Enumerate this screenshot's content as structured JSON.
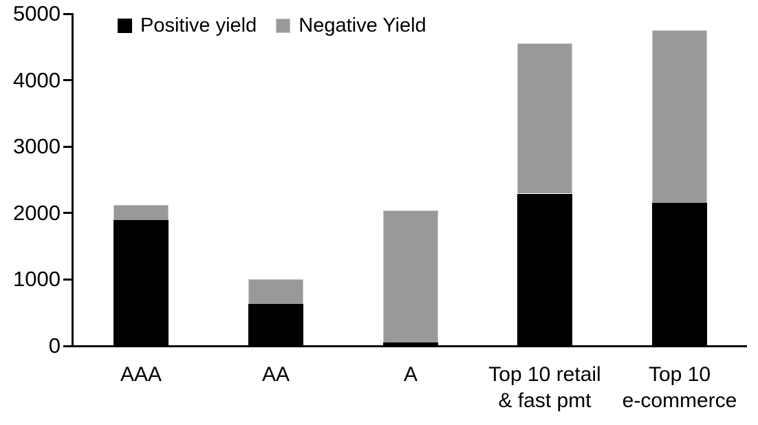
{
  "chart_data": {
    "type": "bar",
    "stacked": true,
    "title": "",
    "categories": [
      "AAA",
      "AA",
      "A",
      "Top 10 retail\n& fast pmt",
      "Top 10\ne-commerce"
    ],
    "series": [
      {
        "name": "Positive yield",
        "color": "#000000",
        "values": [
          1890,
          630,
          50,
          2290,
          2150
        ]
      },
      {
        "name": "Negative Yield",
        "color": "#999999",
        "values": [
          235,
          375,
          1990,
          2260,
          2600
        ]
      }
    ],
    "totals": [
      2125,
      1005,
      2040,
      4550,
      4750
    ],
    "xlabel": "",
    "ylabel": "",
    "ylim": [
      0,
      5000
    ],
    "yticks": [
      0,
      1000,
      2000,
      3000,
      4000,
      5000
    ],
    "ytick_labels": [
      "0",
      "1000",
      "2000",
      "3000",
      "4000",
      "5000"
    ],
    "grid": false,
    "legend_position": "top"
  },
  "colors": {
    "positive_series": "#000000",
    "negative_series": "#999999",
    "axis": "#000000",
    "background": "#ffffff",
    "gray_segment_border": "#c6c6c6"
  }
}
